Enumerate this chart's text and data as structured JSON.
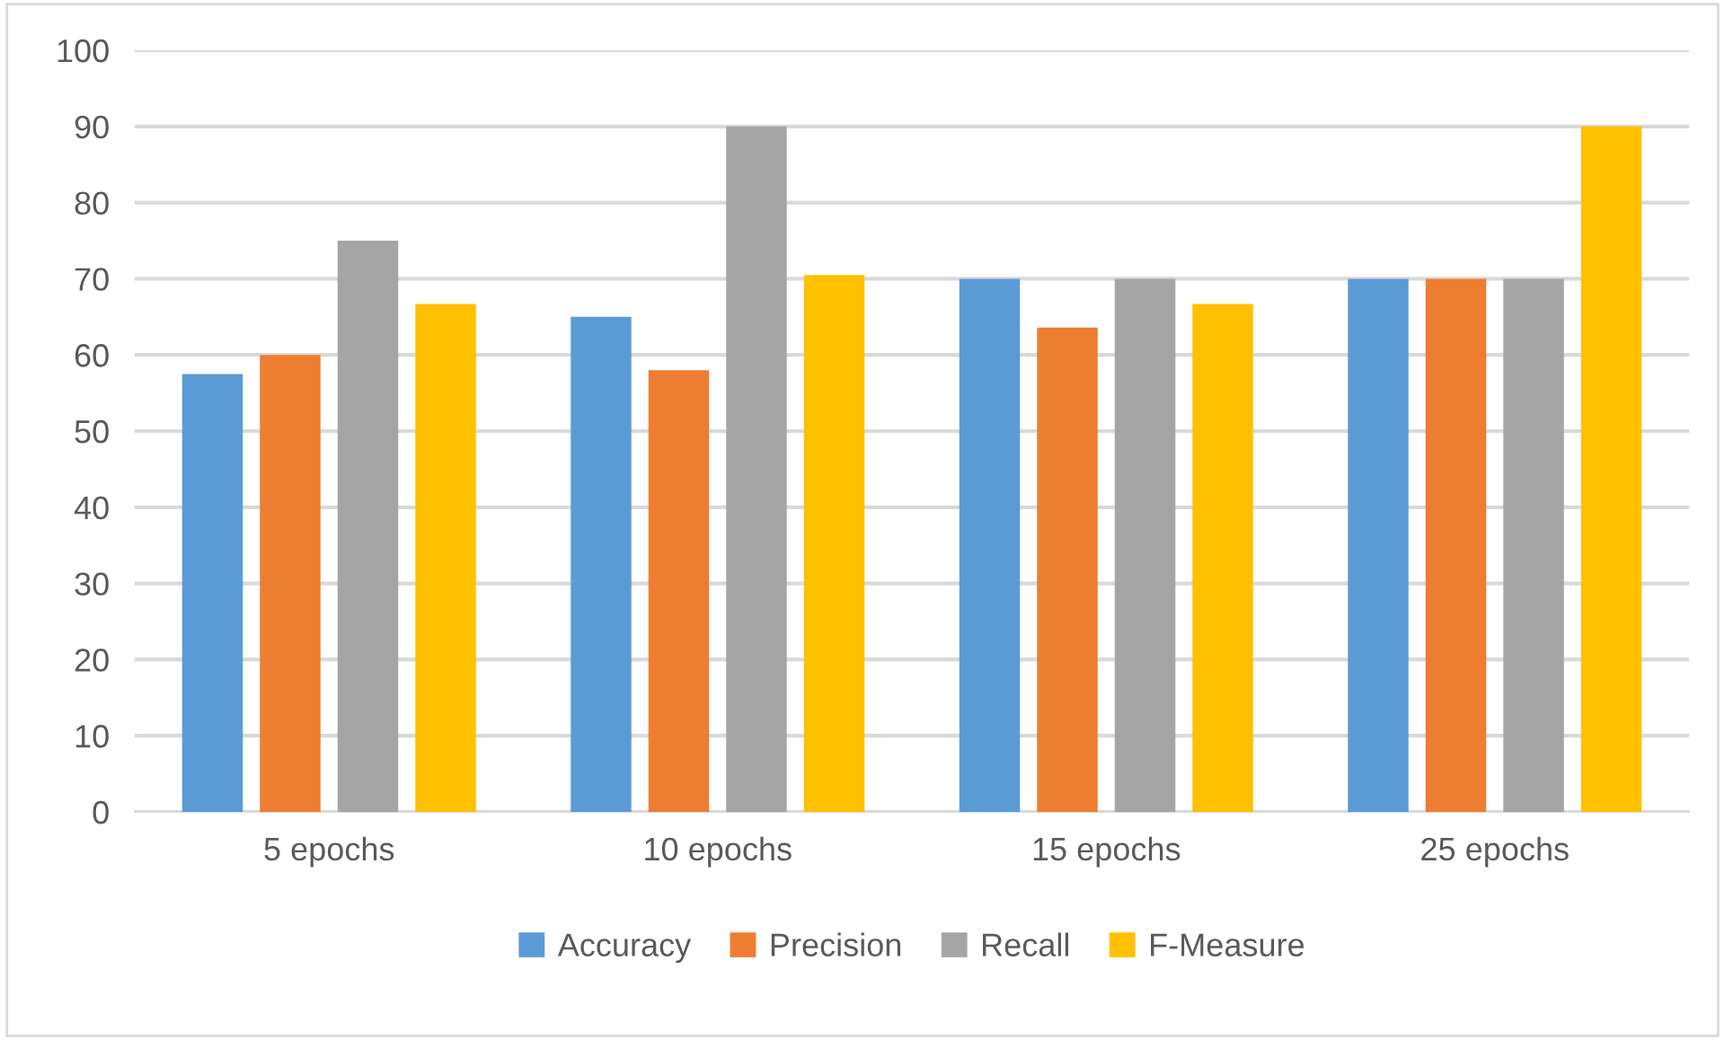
{
  "chart_data": {
    "type": "bar",
    "categories": [
      "5 epochs",
      "10 epochs",
      "15 epochs",
      "25 epochs"
    ],
    "series": [
      {
        "name": "Accuracy",
        "color": "#5b9bd5",
        "values": [
          57.5,
          65,
          70,
          70
        ]
      },
      {
        "name": "Precision",
        "color": "#ed7d31",
        "values": [
          60,
          58,
          63.6,
          70
        ]
      },
      {
        "name": "Recall",
        "color": "#a5a5a5",
        "values": [
          75,
          90,
          70,
          70
        ]
      },
      {
        "name": "F-Measure",
        "color": "#ffc000",
        "values": [
          66.7,
          70.5,
          66.7,
          90
        ]
      }
    ],
    "ylim": [
      0,
      100
    ],
    "yticks": [
      0,
      10,
      20,
      30,
      40,
      50,
      60,
      70,
      80,
      90,
      100
    ],
    "grid": "y",
    "legend": "bottom"
  }
}
